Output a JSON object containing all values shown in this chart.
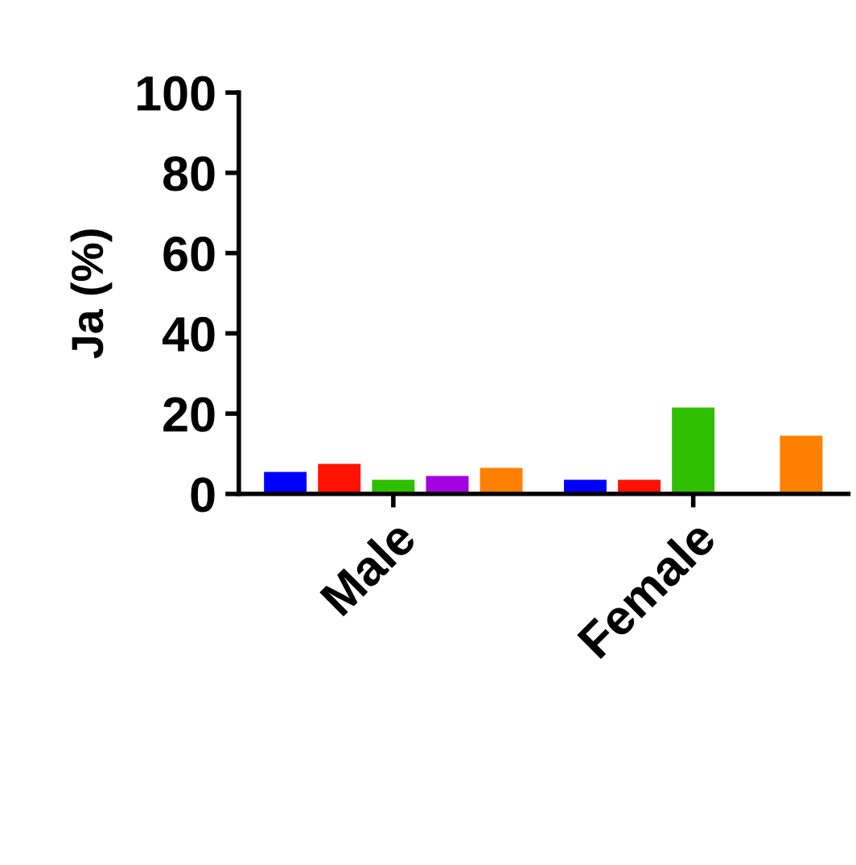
{
  "chart_data": {
    "type": "bar",
    "ylabel": "Ja (%)",
    "categories": [
      "Male",
      "Female"
    ],
    "series": [
      {
        "color": "#0000ff",
        "values": [
          5.5,
          3.5
        ]
      },
      {
        "color": "#ff1200",
        "values": [
          7.5,
          3.5
        ]
      },
      {
        "color": "#2ebf00",
        "values": [
          3.5,
          21.5
        ]
      },
      {
        "color": "#a400e0",
        "values": [
          4.5,
          null
        ]
      },
      {
        "color": "#ff8000",
        "values": [
          6.5,
          14.5
        ]
      }
    ],
    "ylim": [
      0,
      100
    ],
    "yticks": [
      0,
      20,
      40,
      60,
      80,
      100
    ],
    "grid": false,
    "legend": false
  }
}
